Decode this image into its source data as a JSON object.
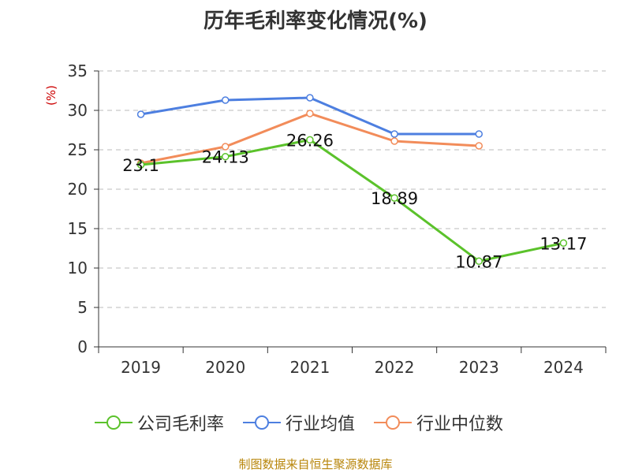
{
  "page": {
    "title": "历年毛利率变化情况(%)",
    "source": "制图数据来自恒生聚源数据库"
  },
  "colors": {
    "company": "#5bc22b",
    "industry_avg": "#4d7fe0",
    "industry_median": "#f28c5a",
    "ylabel": "#cc0000",
    "grid": "#bbbbbb"
  },
  "chart_data": {
    "type": "line",
    "title": "历年毛利率变化情况(%)",
    "ylabel": "(%)",
    "xlabel": "",
    "categories": [
      "2019",
      "2020",
      "2021",
      "2022",
      "2023",
      "2024"
    ],
    "ylim": [
      0,
      35
    ],
    "yticks": [
      0,
      5,
      10,
      15,
      20,
      25,
      30,
      35
    ],
    "grid": true,
    "legend_position": "bottom",
    "series": [
      {
        "name": "公司毛利率",
        "color": "#5bc22b",
        "values": [
          23.1,
          24.13,
          26.26,
          18.89,
          10.87,
          13.17
        ],
        "labels": [
          "23.1",
          "24.13",
          "26.26",
          "18.89",
          "10.87",
          "13.17"
        ]
      },
      {
        "name": "行业均值",
        "color": "#4d7fe0",
        "values": [
          29.5,
          31.3,
          31.6,
          27.0,
          27.0,
          null
        ]
      },
      {
        "name": "行业中位数",
        "color": "#f28c5a",
        "values": [
          23.3,
          25.4,
          29.6,
          26.1,
          25.5,
          null
        ]
      }
    ]
  }
}
